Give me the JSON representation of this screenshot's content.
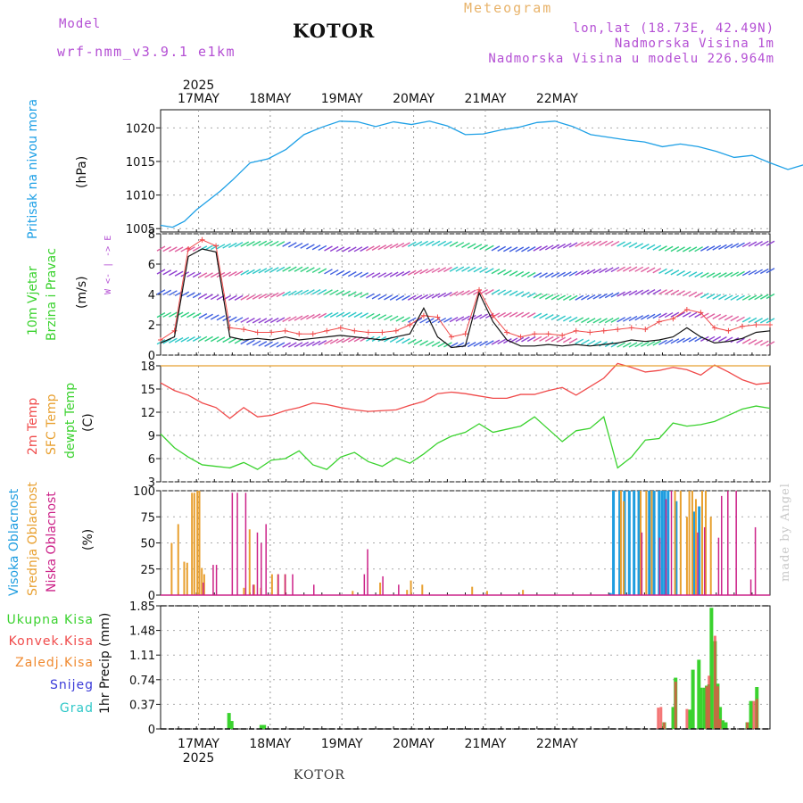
{
  "header": {
    "model_label": "Model",
    "model_name": "wrf-nmm_v3.9.1 e1km",
    "city": "KOTOR",
    "meteogram": "Meteogram",
    "lonlat": "lon,lat (18.73E, 42.49N)",
    "altitude": "Nadmorska Visina 1m",
    "model_altitude": "Nadmorska Visina u modelu 226.964m"
  },
  "footer": {
    "city": "KOTOR",
    "credit": "made by Angel"
  },
  "colors": {
    "pressure": "#1ea0e6",
    "wind_speed": "#111111",
    "gust": "#f04a4a",
    "t2m": "#f04a4a",
    "sfc_temp": "#e8a030",
    "dewpt": "#3ad22e",
    "high_cloud": "#1e9de0",
    "mid_cloud": "#e8a030",
    "low_cloud": "#cc2288",
    "precip_total": "#3ad22e",
    "precip_conv": "#f04a4a",
    "precip_strat": "#f08a30",
    "snow": "#3a3ad8",
    "graupel": "#30c8c8"
  },
  "chart_data": [
    {
      "type": "line",
      "panel": "pressure",
      "ylabel_main": "Pritisak na nivou mora",
      "unit": "(hPa)",
      "ylim": [
        1004.5,
        1022.7
      ],
      "yticks": [
        "1005",
        "1010",
        "1015",
        "1020"
      ],
      "xticks": [
        "17MAY",
        "18MAY",
        "19MAY",
        "20MAY",
        "21MAY",
        "22MAY"
      ],
      "year": "2025",
      "x_hours": [
        0,
        4,
        8,
        12,
        16,
        20,
        24,
        30,
        36,
        42,
        48,
        54,
        60,
        66,
        72,
        78,
        84,
        90,
        96,
        102,
        108,
        114,
        120,
        126,
        132,
        138,
        144,
        150,
        156,
        162,
        168,
        174,
        180,
        186,
        192,
        198,
        204,
        210,
        216,
        222,
        228,
        234,
        240
      ],
      "values": [
        1005.5,
        1005.2,
        1006.1,
        1007.8,
        1009.2,
        1010.6,
        1012.2,
        1014.8,
        1015.4,
        1016.8,
        1019.0,
        1020.1,
        1021.0,
        1020.9,
        1020.2,
        1020.9,
        1020.5,
        1021.0,
        1020.3,
        1019.0,
        1019.1,
        1019.7,
        1020.1,
        1020.8,
        1021.0,
        1020.2,
        1019.0,
        1018.6,
        1018.2,
        1017.9,
        1017.2,
        1017.6,
        1017.2,
        1016.5,
        1015.6,
        1015.9,
        1014.8,
        1013.8,
        1014.6,
        1015.0,
        1015.0,
        1015.0,
        1015.0
      ]
    },
    {
      "type": "line",
      "panel": "wind",
      "ylabel_main": "10m Vjetar",
      "ylabel_sub": "Brzina i Pravac",
      "unit": "(m/s)",
      "compass": "W <- | -> E",
      "ylim": [
        0,
        8
      ],
      "yticks": [
        "0",
        "2",
        "4",
        "6",
        "8"
      ],
      "series": [
        {
          "values": [
            0.8,
            1.2,
            6.5,
            7.0,
            6.8,
            1.2,
            1.0,
            1.1,
            1.0,
            1.2,
            1.0,
            1.1,
            1.2,
            1.3,
            1.2,
            1.1,
            1.0,
            1.2,
            1.4,
            3.1,
            1.2,
            0.5,
            0.6,
            4.1,
            2.2,
            1.0,
            0.6,
            0.6,
            0.7,
            0.6,
            0.7,
            0.6,
            0.7,
            0.8,
            1.0,
            0.9,
            1.0,
            1.2,
            1.8,
            1.2,
            0.8,
            0.9,
            1.1,
            1.5,
            1.6
          ]
        },
        {
          "values": [
            1.0,
            1.6,
            7.0,
            7.6,
            7.2,
            1.8,
            1.7,
            1.5,
            1.5,
            1.6,
            1.4,
            1.4,
            1.6,
            1.8,
            1.6,
            1.5,
            1.5,
            1.6,
            2.0,
            2.6,
            2.5,
            1.2,
            1.4,
            4.3,
            2.6,
            1.5,
            1.2,
            1.4,
            1.4,
            1.3,
            1.6,
            1.5,
            1.6,
            1.7,
            1.8,
            1.7,
            2.2,
            2.4,
            3.0,
            2.8,
            1.8,
            1.6,
            1.9,
            2.0,
            2.0
          ]
        }
      ],
      "barb_rows": [
        0.9,
        2.5,
        4.0,
        5.5,
        7.2
      ]
    },
    {
      "type": "line",
      "panel": "temperature",
      "ylabel": [
        "2m Temp",
        "SFC Temp",
        "dewpt Temp"
      ],
      "unit": "(C)",
      "ylim": [
        3,
        18
      ],
      "yticks": [
        "3",
        "6",
        "9",
        "12",
        "15",
        "18"
      ],
      "series": [
        {
          "name": "2m Temp",
          "values": [
            15.8,
            14.8,
            14.2,
            13.2,
            12.6,
            11.2,
            12.6,
            11.4,
            11.6,
            12.2,
            12.6,
            13.2,
            13.0,
            12.6,
            12.3,
            12.1,
            12.2,
            12.3,
            12.9,
            13.4,
            14.4,
            14.6,
            14.4,
            14.1,
            13.8,
            13.8,
            14.3,
            14.3,
            14.8,
            15.2,
            14.2,
            15.3,
            16.4,
            18.3,
            17.8,
            17.2,
            17.4,
            17.8,
            17.5,
            16.8,
            18.1,
            17.2,
            16.2,
            15.6,
            15.8
          ]
        },
        {
          "name": "SFC Temp",
          "values": [
            18.0,
            18.0,
            18.0,
            18.0,
            18.0,
            18.0,
            18.0,
            18.0,
            18.0,
            18.0,
            18.0,
            18.0,
            18.0,
            18.0,
            18.0,
            18.0,
            18.0,
            18.0,
            18.0,
            18.0,
            18.0,
            18.0,
            18.0,
            18.0,
            18.0,
            18.0,
            18.0,
            18.0,
            18.0,
            18.0,
            18.0,
            18.0,
            18.0,
            18.0,
            18.0,
            18.0,
            18.0,
            18.0,
            18.0,
            18.0,
            18.0,
            18.0,
            18.0,
            18.0,
            18.0
          ]
        },
        {
          "name": "dewpt Temp",
          "values": [
            9.2,
            7.4,
            6.2,
            5.2,
            5.0,
            4.8,
            5.5,
            4.6,
            5.8,
            6.0,
            7.0,
            5.2,
            4.6,
            6.2,
            6.8,
            5.6,
            5.0,
            6.1,
            5.4,
            6.6,
            8.0,
            8.9,
            9.4,
            10.5,
            9.4,
            9.8,
            10.2,
            11.4,
            9.8,
            8.2,
            9.6,
            9.9,
            11.4,
            4.8,
            6.2,
            8.4,
            8.6,
            10.6,
            10.2,
            10.4,
            10.8,
            11.6,
            12.4,
            12.8,
            12.5
          ]
        }
      ]
    },
    {
      "type": "bar",
      "panel": "clouds",
      "ylabel": [
        "Visoka Oblacnost",
        "Srednja Oblacnost",
        "Niska Oblacnost"
      ],
      "unit": "(%)",
      "ylim": [
        0,
        100
      ],
      "yticks": [
        "0",
        "25",
        "50",
        "75",
        "100"
      ],
      "series": [
        {
          "name": "Visoka Oblacnost",
          "hours": [
            150.6,
            151.6,
            153.7,
            155.3,
            156.9,
            158.5,
            160.1,
            163.6,
            165.2,
            166.9,
            167.9,
            168.8,
            169.9,
            172.6,
            178.6,
            180.3
          ],
          "values": [
            2,
            100,
            100,
            100,
            100,
            100,
            100,
            100,
            100,
            100,
            100,
            100,
            100,
            90,
            80,
            85
          ]
        },
        {
          "name": "Srednja Oblacnost",
          "hours": [
            3.7,
            5.9,
            7.9,
            8.9,
            10.5,
            11.3,
            12.3,
            13.0,
            13.8,
            14.6,
            27.9,
            29.8,
            31.3,
            33.6,
            37.3,
            39.3,
            41.7,
            64.3,
            73.5,
            82.5,
            83.8,
            87.6,
            104.3,
            109.3,
            121.3,
            154.1,
            155.0,
            160.7,
            162.6,
            164.4,
            172.2,
            174.1,
            176.2,
            177.0,
            178.0,
            179.2,
            181.3,
            182.5,
            184.2
          ],
          "values": [
            50,
            68,
            32,
            31,
            98,
            98,
            100,
            100,
            26,
            20,
            7,
            63,
            10,
            7,
            20,
            20,
            20,
            4,
            12,
            5,
            14,
            10,
            8,
            4,
            5,
            100,
            90,
            100,
            100,
            100,
            100,
            100,
            75,
            100,
            100,
            92,
            100,
            100,
            75
          ]
        },
        {
          "name": "Niska Oblacnost",
          "hours": [
            14.3,
            17.6,
            18.7,
            24.0,
            25.7,
            28.5,
            31.0,
            32.4,
            33.7,
            35.3,
            39.4,
            41.7,
            44.2,
            51.3,
            68.2,
            69.3,
            74.4,
            79.7,
            161.1,
            167.1,
            169.2,
            171.0,
            179.8,
            182.1,
            186.8,
            187.8,
            189.9,
            192.7,
            197.6,
            199.1
          ],
          "values": [
            12,
            29,
            29,
            98,
            98,
            98,
            10,
            60,
            50,
            68,
            20,
            20,
            20,
            10,
            20,
            44,
            18,
            10,
            60,
            55,
            92,
            100,
            60,
            65,
            55,
            95,
            100,
            100,
            15,
            65
          ]
        }
      ]
    },
    {
      "type": "bar",
      "panel": "precip",
      "ylabel": [
        "Ukupna Kisa",
        "Konvek.Kisa",
        "Zaledj.Kisa",
        "Snijeg",
        "Grad"
      ],
      "unit": "1hr Precip (mm)",
      "ylim": [
        0,
        1.85
      ],
      "yticks": [
        "0",
        "0.37",
        "0.74",
        "1.11",
        "1.48",
        "1.85"
      ],
      "xticks": [
        "17MAY",
        "18MAY",
        "19MAY",
        "20MAY",
        "21MAY",
        "22MAY"
      ],
      "year": "2025",
      "series": [
        {
          "name": "Ukupna Kisa",
          "hours": [
            22.9,
            23.8,
            33.7,
            34.7,
            168.6,
            171.6,
            172.4,
            177.2,
            178.2,
            180.2,
            180.9,
            182.1,
            182.8,
            183.6,
            184.4,
            185.6,
            186.5,
            187.3,
            188.2,
            189.2,
            196.4,
            197.6,
            199.6
          ],
          "values": [
            0.24,
            0.12,
            0.06,
            0.06,
            0.1,
            0.33,
            0.77,
            0.29,
            0.89,
            1.04,
            0.62,
            0.62,
            0.65,
            0.67,
            1.82,
            1.32,
            0.68,
            0.33,
            0.13,
            0.1,
            0.1,
            0.42,
            0.63
          ]
        },
        {
          "name": "Konvek.Kisa",
          "hours": [
            166.6,
            167.5,
            168.6,
            172.4,
            176.2,
            182.8,
            183.6,
            185.6,
            186.5,
            187.3,
            196.4,
            198.6,
            199.6
          ],
          "values": [
            0.32,
            0.33,
            0.1,
            0.71,
            0.3,
            0.64,
            0.8,
            1.4,
            0.64,
            0.15,
            0.1,
            0.42,
            0.45
          ]
        }
      ]
    }
  ]
}
